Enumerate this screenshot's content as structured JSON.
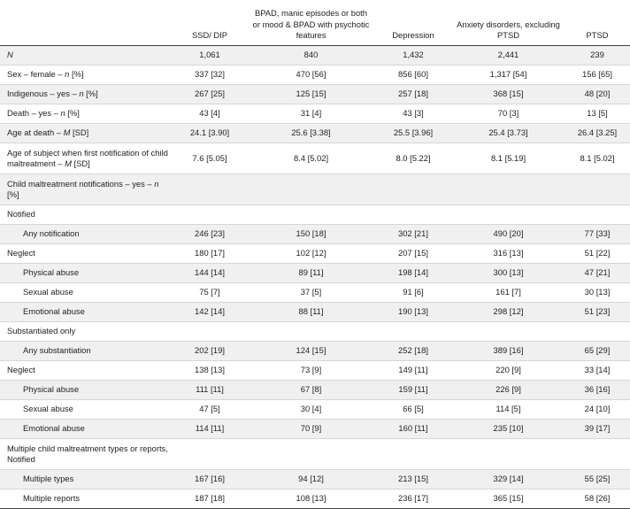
{
  "headers": [
    "",
    "SSD/ DIP",
    "BPAD, manic episodes or both or mood & BPAD with psychotic features",
    "Depression",
    "Anxiety disorders, excluding PTSD",
    "PTSD"
  ],
  "rows": [
    {
      "label": "N",
      "italic": true,
      "shaded": true,
      "values": [
        "1,061",
        "840",
        "1,432",
        "2,441",
        "239"
      ]
    },
    {
      "label": "Sex – female – n [%]",
      "values": [
        "337 [32]",
        "470 [56]",
        "856 [60]",
        "1,317 [54]",
        "156 [65]"
      ]
    },
    {
      "label": "Indigenous – yes – n [%]",
      "shaded": true,
      "values": [
        "267 [25]",
        "125 [15]",
        "257 [18]",
        "368 [15]",
        "48 [20]"
      ]
    },
    {
      "label": "Death – yes – n [%]",
      "values": [
        "43 [4]",
        "31 [4]",
        "43 [3]",
        "70 [3]",
        "13 [5]"
      ]
    },
    {
      "label": "Age at death – M [SD]",
      "shaded": true,
      "values": [
        "24.1 [3.90]",
        "25.6 [3.38]",
        "25.5 [3.96]",
        "25.4 [3.73]",
        "26.4 [3.25]"
      ]
    },
    {
      "label": "Age of subject when first notification of child maltreatment – M [SD]",
      "tall": true,
      "values": [
        "7.6 [5.05]",
        "8.4 [5.02]",
        "8.0 [5.22]",
        "8.1 [5.19]",
        "8.1 [5.02]"
      ]
    },
    {
      "label": "Child maltreatment notifications – yes – n [%]",
      "tall": true,
      "shaded": true,
      "values": [
        "",
        "",
        "",
        "",
        ""
      ]
    },
    {
      "label": "Notified",
      "values": [
        "",
        "",
        "",
        "",
        ""
      ]
    },
    {
      "label": "Any notification",
      "indent": true,
      "shaded": true,
      "values": [
        "246 [23]",
        "150 [18]",
        "302 [21]",
        "490 [20]",
        "77 [33]"
      ]
    },
    {
      "label": "Neglect",
      "values": [
        "180 [17]",
        "102 [12]",
        "207 [15]",
        "316 [13]",
        "51 [22]"
      ]
    },
    {
      "label": "Physical abuse",
      "indent": true,
      "shaded": true,
      "values": [
        "144 [14]",
        "89 [11]",
        "198 [14]",
        "300 [13]",
        "47 [21]"
      ]
    },
    {
      "label": "Sexual abuse",
      "indent": true,
      "values": [
        "75 [7]",
        "37 [5]",
        "91 [6]",
        "161 [7]",
        "30 [13]"
      ]
    },
    {
      "label": "Emotional abuse",
      "indent": true,
      "shaded": true,
      "values": [
        "142 [14]",
        "88 [11]",
        "190 [13]",
        "298 [12]",
        "51 [23]"
      ]
    },
    {
      "label": "Substantiated only",
      "values": [
        "",
        "",
        "",
        "",
        ""
      ]
    },
    {
      "label": "Any substantiation",
      "indent": true,
      "shaded": true,
      "values": [
        "202 [19]",
        "124 [15]",
        "252 [18]",
        "389 [16]",
        "65 [29]"
      ]
    },
    {
      "label": "Neglect",
      "values": [
        "138 [13]",
        "73 [9]",
        "149 [11]",
        "220 [9]",
        "33 [14]"
      ]
    },
    {
      "label": "Physical abuse",
      "indent": true,
      "shaded": true,
      "values": [
        "111 [11]",
        "67 [8]",
        "159 [11]",
        "226 [9]",
        "36 [16]"
      ]
    },
    {
      "label": "Sexual abuse",
      "indent": true,
      "values": [
        "47 [5]",
        "30 [4]",
        "66 [5]",
        "114 [5]",
        "24 [10]"
      ]
    },
    {
      "label": "Emotional abuse",
      "indent": true,
      "shaded": true,
      "values": [
        "114 [11]",
        "70 [9]",
        "160 [11]",
        "235 [10]",
        "39 [17]"
      ]
    },
    {
      "label": "Multiple child maltreatment types or reports, Notified",
      "tall": true,
      "values": [
        "",
        "",
        "",
        "",
        ""
      ]
    },
    {
      "label": "Multiple types",
      "indent": true,
      "shaded": true,
      "values": [
        "167 [16]",
        "94 [12]",
        "213 [15]",
        "329 [14]",
        "55 [25]"
      ]
    },
    {
      "label": "Multiple reports",
      "indent": true,
      "values": [
        "187 [18]",
        "108 [13]",
        "236 [17]",
        "365 [15]",
        "58 [26]"
      ]
    }
  ]
}
